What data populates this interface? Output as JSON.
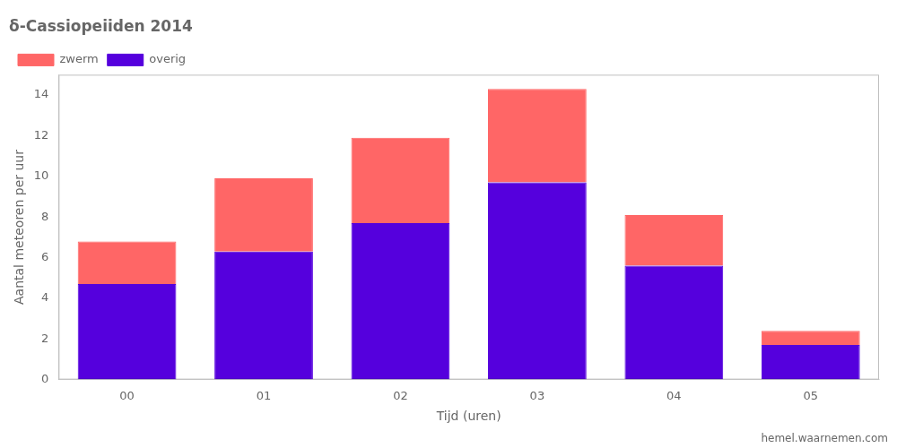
{
  "chart_data": {
    "type": "bar",
    "stacked": true,
    "title": "δ-Cassiopeiiden 2014",
    "xlabel": "Tijd (uren)",
    "ylabel": "Aantal meteoren per uur",
    "categories": [
      "00",
      "01",
      "02",
      "03",
      "04",
      "05"
    ],
    "series": [
      {
        "name": "overig",
        "color": "#5500dd",
        "values": [
          4.7,
          6.3,
          7.7,
          9.7,
          5.6,
          1.7
        ]
      },
      {
        "name": "zwerm",
        "color": "#ff6666",
        "values": [
          2.1,
          3.6,
          4.2,
          4.6,
          2.5,
          0.7
        ]
      }
    ],
    "ylim": [
      0,
      15
    ],
    "yticks": [
      0,
      2,
      4,
      6,
      8,
      10,
      12,
      14
    ],
    "grid": false,
    "legend": "upper left",
    "annotations": [
      "hemel.waarnemen.com"
    ]
  }
}
